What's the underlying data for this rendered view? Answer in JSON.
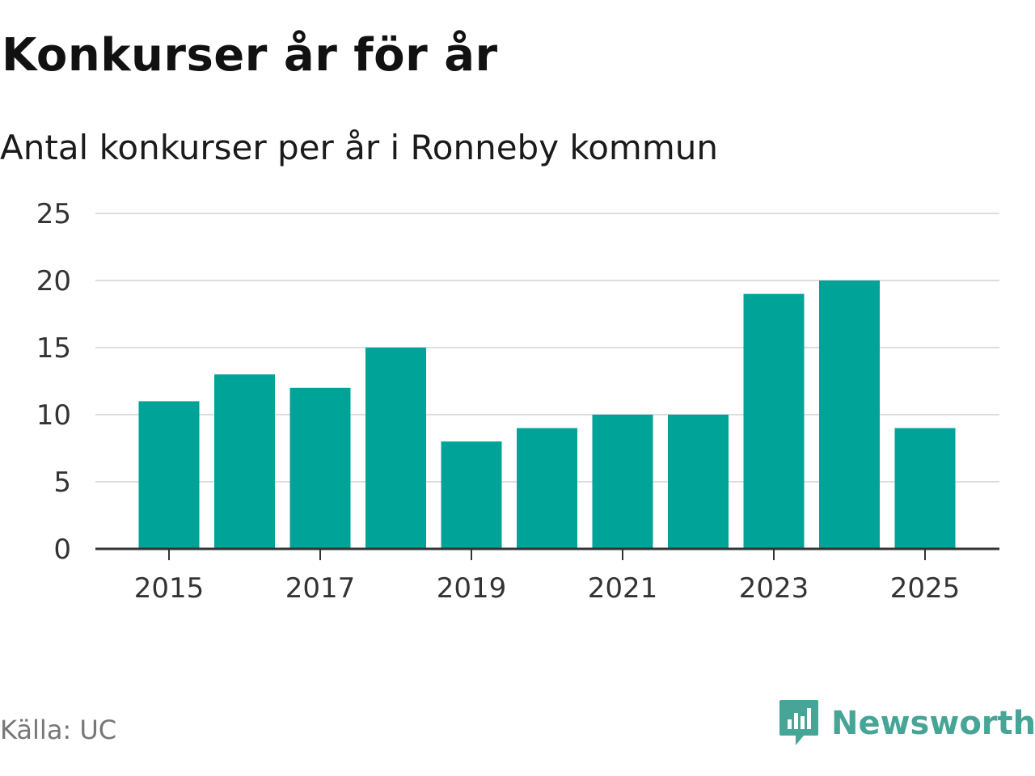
{
  "header": {
    "title": "Konkurser år för år",
    "subtitle": "Antal konkurser per år i Ronneby kommun"
  },
  "footer": {
    "source": "Källa: UC",
    "brand": "Newsworthy"
  },
  "colors": {
    "bar": "#00a398",
    "grid": "#dddddd",
    "axis": "#333333",
    "brand": "#46a596"
  },
  "chart_data": {
    "type": "bar",
    "title": "Konkurser år för år",
    "subtitle": "Antal konkurser per år i Ronneby kommun",
    "xlabel": "",
    "ylabel": "",
    "categories": [
      "2015",
      "2016",
      "2017",
      "2018",
      "2019",
      "2020",
      "2021",
      "2022",
      "2023",
      "2024",
      "2025"
    ],
    "values": [
      11,
      13,
      12,
      15,
      8,
      9,
      10,
      10,
      19,
      20,
      9
    ],
    "x_tick_labels": [
      "2015",
      "2017",
      "2019",
      "2021",
      "2023",
      "2025"
    ],
    "y_ticks": [
      0,
      5,
      10,
      15,
      20,
      25
    ],
    "ylim": [
      0,
      25
    ],
    "grid": true
  }
}
